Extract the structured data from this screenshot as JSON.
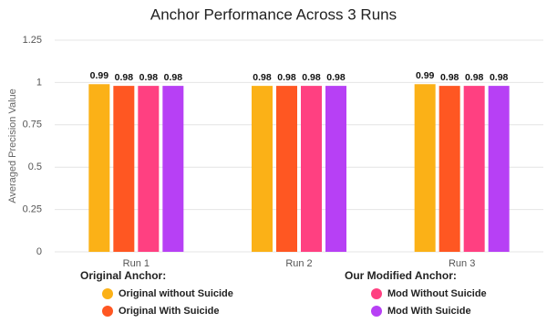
{
  "chart_data": {
    "type": "bar",
    "title": "Anchor Performance Across 3 Runs",
    "y_label": "Averaged Precision Value",
    "categories": [
      "Run 1",
      "Run 2",
      "Run 3"
    ],
    "series": [
      {
        "name": "Original without Suicide",
        "color": "#fbb117",
        "values": [
          0.99,
          0.98,
          0.99
        ]
      },
      {
        "name": "Original With Suicide",
        "color": "#ff5722",
        "values": [
          0.98,
          0.98,
          0.98
        ]
      },
      {
        "name": "Mod Without Suicide",
        "color": "#ff4081",
        "values": [
          0.98,
          0.98,
          0.98
        ]
      },
      {
        "name": "Mod With Suicide",
        "color": "#b740f5",
        "values": [
          0.98,
          0.98,
          0.98
        ]
      }
    ],
    "legend_groups": [
      {
        "title": "Original Anchor:"
      },
      {
        "title": "Our Modified Anchor:"
      }
    ],
    "ylim": [
      0,
      1.25
    ],
    "yticks": [
      0,
      0.25,
      0.5,
      0.75,
      1,
      1.25
    ],
    "grid": true
  }
}
